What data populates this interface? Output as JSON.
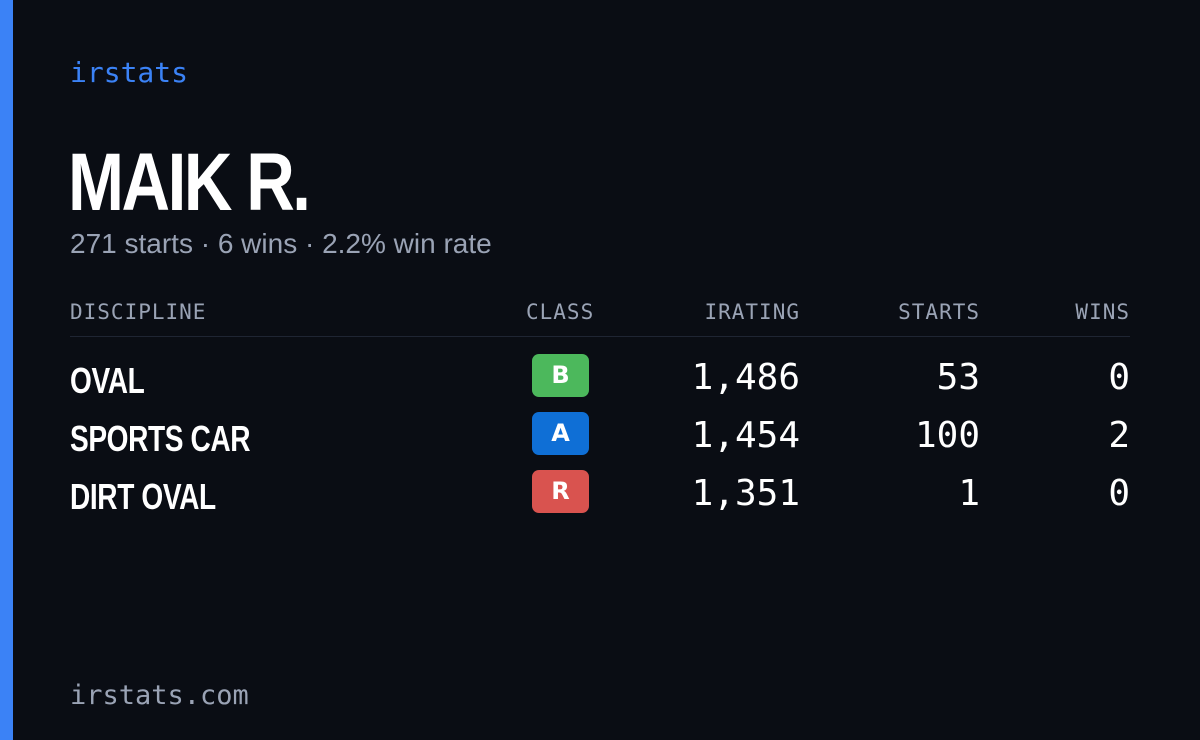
{
  "brand": "irstats",
  "driver": {
    "name": "MAIK R.",
    "summary": "271 starts · 6 wins · 2.2% win rate"
  },
  "table": {
    "headers": {
      "discipline": "DISCIPLINE",
      "class": "CLASS",
      "irating": "IRATING",
      "starts": "STARTS",
      "wins": "WINS"
    },
    "rows": [
      {
        "discipline": "OVAL",
        "class": "B",
        "class_color": "#4cb85c",
        "irating": "1,486",
        "starts": "53",
        "wins": "0"
      },
      {
        "discipline": "SPORTS CAR",
        "class": "A",
        "class_color": "#0f6fd6",
        "irating": "1,454",
        "starts": "100",
        "wins": "2"
      },
      {
        "discipline": "DIRT OVAL",
        "class": "R",
        "class_color": "#d9534f",
        "irating": "1,351",
        "starts": "1",
        "wins": "0"
      }
    ]
  },
  "footer": "irstats.com",
  "colors": {
    "accent": "#3b82f6",
    "background": "#0a0d14",
    "muted_text": "#9aa3b5"
  }
}
